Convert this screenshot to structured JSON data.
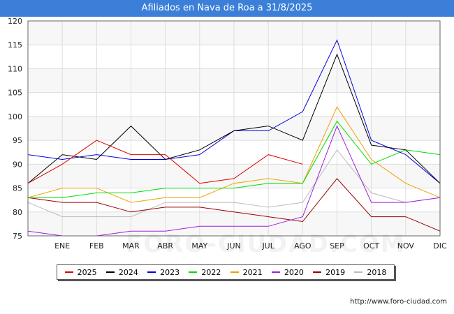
{
  "title": "Afiliados en Nava de Roa a 31/8/2025",
  "footer": "http://www.foro-ciudad.com",
  "watermark": "FORO-CIUDAD.COM",
  "chart_data": {
    "type": "line",
    "title": "Afiliados en Nava de Roa a 31/8/2025",
    "categories": [
      "",
      "ENE",
      "FEB",
      "MAR",
      "ABR",
      "MAY",
      "JUN",
      "JUL",
      "AGO",
      "SEP",
      "OCT",
      "NOV",
      "DIC"
    ],
    "ylim": [
      75,
      120
    ],
    "yticks": [
      75,
      80,
      85,
      90,
      95,
      100,
      105,
      110,
      115,
      120
    ],
    "grid": true,
    "legend_position": "bottom",
    "series": [
      {
        "name": "2025",
        "color": "#dd0000",
        "values": [
          86,
          90,
          95,
          92,
          92,
          86,
          87,
          92,
          90,
          null,
          null,
          null,
          null
        ]
      },
      {
        "name": "2024",
        "color": "#000000",
        "values": [
          86,
          92,
          91,
          98,
          91,
          93,
          97,
          98,
          95,
          113,
          94,
          93,
          86
        ]
      },
      {
        "name": "2023",
        "color": "#0000dd",
        "values": [
          92,
          91,
          92,
          91,
          91,
          92,
          97,
          97,
          101,
          116,
          95,
          92,
          86
        ]
      },
      {
        "name": "2022",
        "color": "#00dd00",
        "values": [
          83,
          83,
          84,
          84,
          85,
          85,
          85,
          86,
          86,
          99,
          90,
          93,
          92
        ]
      },
      {
        "name": "2021",
        "color": "#f0a000",
        "values": [
          83,
          85,
          85,
          82,
          83,
          83,
          86,
          87,
          86,
          102,
          91,
          86,
          83
        ]
      },
      {
        "name": "2020",
        "color": "#a020dd",
        "values": [
          76,
          75,
          75,
          76,
          76,
          77,
          77,
          77,
          79,
          98,
          82,
          82,
          83
        ]
      },
      {
        "name": "2019",
        "color": "#990000",
        "values": [
          83,
          82,
          82,
          80,
          81,
          81,
          80,
          79,
          78,
          87,
          79,
          79,
          76
        ]
      },
      {
        "name": "2018",
        "color": "#bbbbbb",
        "values": [
          82,
          79,
          79,
          79,
          82,
          82,
          82,
          81,
          82,
          93,
          84,
          82,
          83
        ]
      }
    ]
  }
}
